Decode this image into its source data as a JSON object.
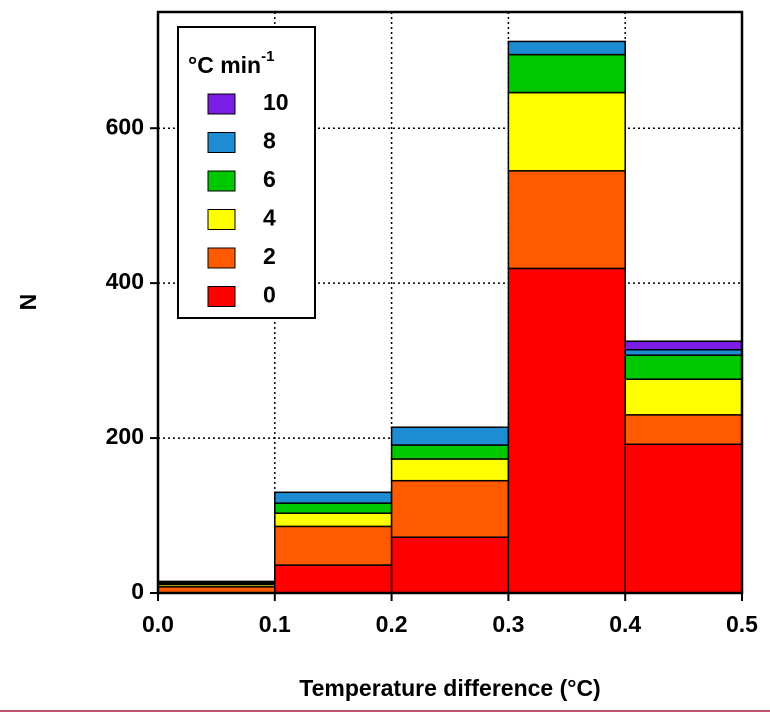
{
  "chart_data": {
    "type": "stacked-histogram",
    "xlabel": "Temperature difference (°C)",
    "ylabel": "N",
    "legend_title": "°C min",
    "legend_title_superscript": "-1",
    "bins": [
      0,
      0.1,
      0.2,
      0.3,
      0.4,
      0.5
    ],
    "series": [
      {
        "name": "0",
        "color": "#ff0000",
        "values": [
          0,
          36,
          72,
          419,
          192
        ]
      },
      {
        "name": "2",
        "color": "#ff5a00",
        "values": [
          8,
          50,
          73,
          126,
          38
        ]
      },
      {
        "name": "4",
        "color": "#ffff00",
        "values": [
          3,
          17,
          28,
          101,
          46
        ]
      },
      {
        "name": "6",
        "color": "#00c800",
        "values": [
          2,
          13,
          18,
          49,
          31
        ]
      },
      {
        "name": "8",
        "color": "#1e8cd2",
        "values": [
          2,
          14,
          23,
          17,
          7
        ]
      },
      {
        "name": "10",
        "color": "#7a1ee6",
        "values": [
          0,
          0,
          0,
          0,
          11
        ]
      }
    ],
    "xlim": [
      0,
      0.5
    ],
    "ylim": [
      0,
      750
    ],
    "xticks": [
      {
        "value": 0,
        "label": "0.0"
      },
      0.1,
      0.2,
      0.3,
      0.4,
      0.5
    ],
    "yticks": [
      0,
      200,
      400,
      600
    ],
    "grid": true,
    "legend_position": "upper left"
  }
}
